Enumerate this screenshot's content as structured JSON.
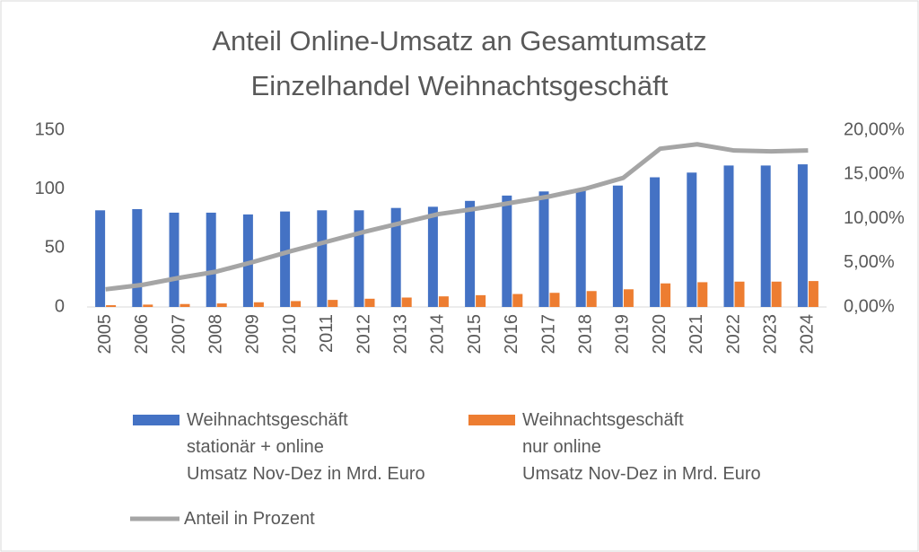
{
  "chart_data": {
    "type": "bar_line",
    "title": "Anteil Online-Umsatz an Gesamtumsatz",
    "subtitle": "Einzelhandel Weihnachtsgeschäft",
    "categories": [
      "2005",
      "2006",
      "2007",
      "2008",
      "2009",
      "2010",
      "2011",
      "2012",
      "2013",
      "2014",
      "2015",
      "2016",
      "2017",
      "2018",
      "2019",
      "2020",
      "2021",
      "2022",
      "2023",
      "2024"
    ],
    "series": [
      {
        "name": "Weihnachtsgeschäft\nstationär + online\nUmsatz Nov-Dez in Mrd. Euro",
        "type": "bar",
        "color": "#4472c4",
        "values": [
          82,
          83,
          80,
          80,
          78.5,
          81,
          82,
          82,
          84,
          85,
          90,
          94.5,
          98,
          100,
          103,
          110,
          114,
          120,
          120,
          121
        ]
      },
      {
        "name": "Weihnachtsgeschäft\nnur online\nUmsatz Nov-Dez in Mrd. Euro",
        "type": "bar",
        "color": "#ed7d31",
        "values": [
          1.5,
          2,
          2.5,
          3,
          4,
          5,
          6,
          7,
          8,
          9,
          10,
          11,
          12,
          13.5,
          15,
          20,
          21,
          21.5,
          21.5,
          22
        ]
      },
      {
        "name": "Anteil in Prozent",
        "type": "line",
        "axis": "y2",
        "color": "#a5a5a5",
        "values": [
          2.0,
          2.5,
          3.3,
          4.0,
          5.1,
          6.3,
          7.4,
          8.5,
          9.5,
          10.5,
          11.1,
          11.8,
          12.5,
          13.4,
          14.6,
          17.9,
          18.4,
          17.7,
          17.6,
          17.7
        ]
      }
    ],
    "ylim": [
      0,
      150
    ],
    "yticks": [
      0,
      50,
      100,
      150
    ],
    "y2lim": [
      0,
      20
    ],
    "y2ticks": [
      {
        "value": 0,
        "label": "0,00%"
      },
      {
        "value": 5,
        "label": "5,00%"
      },
      {
        "value": 10,
        "label": "10,00%"
      },
      {
        "value": 15,
        "label": "15,00%"
      },
      {
        "value": 20,
        "label": "20,00%"
      }
    ],
    "grid": false,
    "legend": "bottom"
  }
}
